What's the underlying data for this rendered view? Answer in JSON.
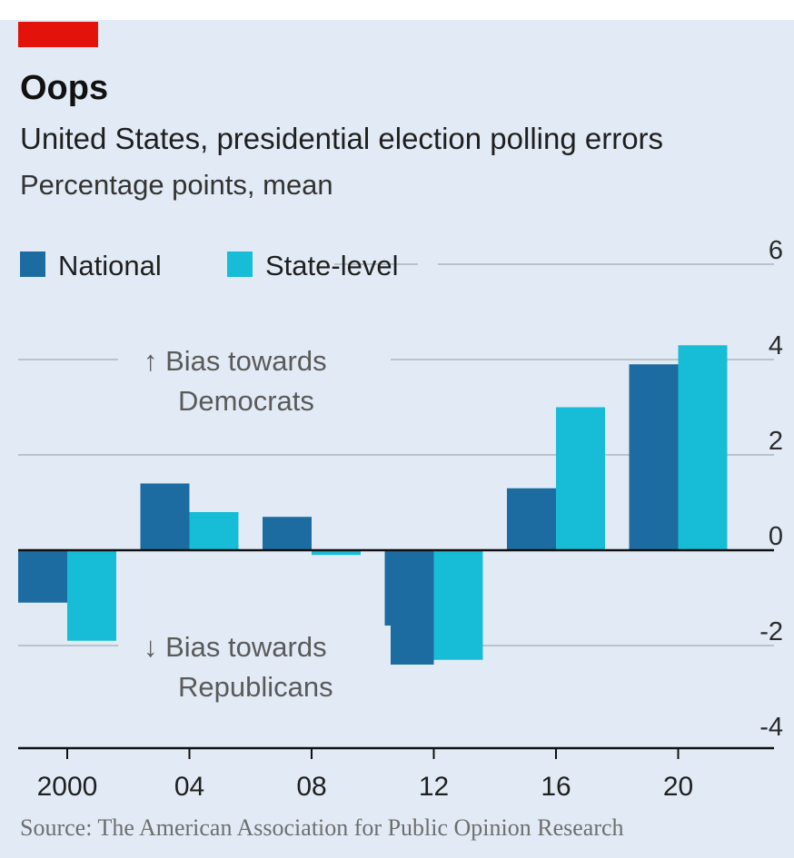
{
  "title": "Oops",
  "subtitle": "United States, presidential election polling errors",
  "unit_label": "Percentage points, mean",
  "source": "Source: The American Association for Public Opinion Research",
  "colors": {
    "accent": "#e3120b",
    "national": "#1c6ca1",
    "state_level": "#17bdd6",
    "background": "#e2ebf5",
    "grid": "#b9c3cc"
  },
  "annotations": [
    {
      "lines": [
        "↑ Bias towards",
        "Democrats"
      ],
      "y_anchor": 4
    },
    {
      "lines": [
        "↓ Bias towards",
        "Republicans"
      ],
      "y_anchor": -2
    }
  ],
  "chart_data": {
    "type": "bar",
    "categories": [
      "2000",
      "04",
      "08",
      "12",
      "16",
      "20"
    ],
    "series": [
      {
        "name": "National",
        "values": [
          -1.1,
          1.4,
          0.7,
          -2.4,
          1.3,
          3.9
        ]
      },
      {
        "name": "State-level",
        "values": [
          -1.9,
          0.8,
          -0.1,
          -2.3,
          3.0,
          4.3
        ]
      }
    ],
    "ylim": [
      -4,
      6
    ],
    "yticks": [
      "6",
      "4",
      "2",
      "0",
      "-2",
      "-4"
    ],
    "ytick_values": [
      6,
      4,
      2,
      0,
      -2,
      -4
    ],
    "grid": true,
    "legend_position": "top-left"
  }
}
